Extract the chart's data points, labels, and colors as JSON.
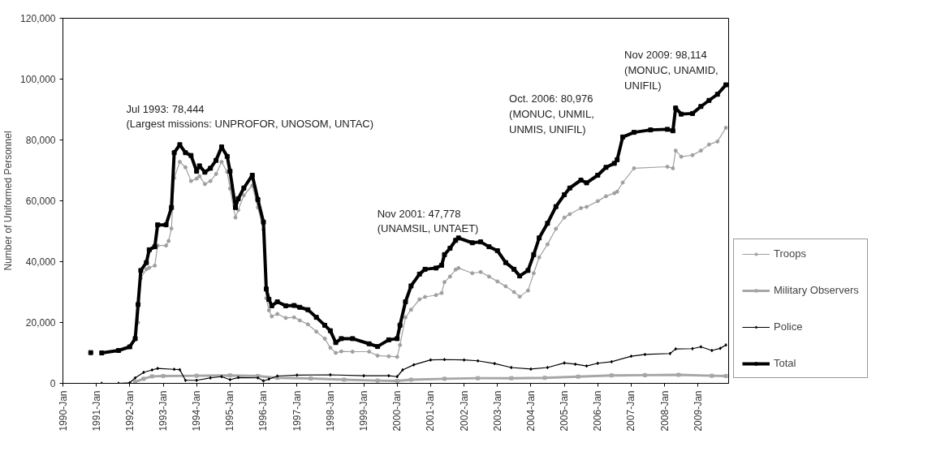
{
  "chart_data": {
    "type": "line",
    "ylabel": "Number of Uniformed Personnel",
    "xlim": [
      "1990-01",
      "2009-12"
    ],
    "xticks": [
      {
        "value": "1990-01",
        "label": "1990-Jan"
      },
      {
        "value": "1991-01",
        "label": "1991-Jan"
      },
      {
        "value": "1992-01",
        "label": "1992-Jan"
      },
      {
        "value": "1993-01",
        "label": "1993-Jan"
      },
      {
        "value": "1994-01",
        "label": "1994-Jan"
      },
      {
        "value": "1995-01",
        "label": "1995-Jan"
      },
      {
        "value": "1996-01",
        "label": "1996-Jan"
      },
      {
        "value": "1997-01",
        "label": "1997-Jan"
      },
      {
        "value": "1998-01",
        "label": "1998-Jan"
      },
      {
        "value": "1999-01",
        "label": "1999-Jan"
      },
      {
        "value": "2000-01",
        "label": "2000-Jan"
      },
      {
        "value": "2001-01",
        "label": "2001-Jan"
      },
      {
        "value": "2002-01",
        "label": "2002-Jan"
      },
      {
        "value": "2003-01",
        "label": "2003-Jan"
      },
      {
        "value": "2004-01",
        "label": "2004-Jan"
      },
      {
        "value": "2005-01",
        "label": "2005-Jan"
      },
      {
        "value": "2006-01",
        "label": "2006-Jan"
      },
      {
        "value": "2007-01",
        "label": "2007-Jan"
      },
      {
        "value": "2008-01",
        "label": "2008-Jan"
      },
      {
        "value": "2009-01",
        "label": "2009-Jan"
      }
    ],
    "ylim": [
      0,
      120000
    ],
    "yticks": [
      0,
      {
        "value": 20000,
        "label": "20,000"
      },
      {
        "value": 40000,
        "label": "40,000"
      },
      {
        "value": 60000,
        "label": "60,000"
      },
      {
        "value": 80000,
        "label": "80,000"
      },
      {
        "value": 100000,
        "label": "100,000"
      },
      {
        "value": 120000,
        "label": "120,000"
      }
    ],
    "grid": false,
    "legend": "right",
    "line_style": "solid",
    "series": [
      {
        "name": "Troops",
        "color": "#a0a0a0",
        "marker": "circle",
        "x": [
          "1992-04",
          "1992-05",
          "1992-07",
          "1992-08",
          "1992-10",
          "1992-11",
          "1993-02",
          "1993-03",
          "1993-04",
          "1993-05",
          "1993-07",
          "1993-09",
          "1993-11",
          "1994-01",
          "1994-02",
          "1994-04",
          "1994-06",
          "1994-08",
          "1994-10",
          "1994-12",
          "1995-01",
          "1995-03",
          "1995-04",
          "1995-06",
          "1995-09",
          "1995-11",
          "1996-01",
          "1996-02",
          "1996-03",
          "1996-04",
          "1996-06",
          "1996-09",
          "1996-12",
          "1997-02",
          "1997-05",
          "1997-08",
          "1997-11",
          "1998-01",
          "1998-03",
          "1998-05",
          "1998-09",
          "1999-03",
          "1999-06",
          "1999-10",
          "2000-01",
          "2000-02",
          "2000-04",
          "2000-06",
          "2000-09",
          "2000-11",
          "2001-03",
          "2001-05",
          "2001-06",
          "2001-08",
          "2001-10",
          "2001-11",
          "2002-04",
          "2002-07",
          "2002-10",
          "2003-01",
          "2003-04",
          "2003-07",
          "2003-09",
          "2003-12",
          "2004-02",
          "2004-04",
          "2004-07",
          "2004-10",
          "2005-01",
          "2005-03",
          "2005-07",
          "2005-09",
          "2006-01",
          "2006-04",
          "2006-07",
          "2006-08",
          "2006-10",
          "2007-02",
          "2008-02",
          "2008-04",
          "2008-05",
          "2008-07",
          "2008-11",
          "2009-02",
          "2009-05",
          "2009-08",
          "2009-11"
        ],
        "values": [
          20000,
          34600,
          37500,
          38000,
          38700,
          45300,
          45300,
          46800,
          50900,
          67500,
          72800,
          71000,
          66500,
          67300,
          68100,
          65500,
          66500,
          68800,
          72800,
          69500,
          64000,
          54500,
          57000,
          61800,
          65000,
          57800,
          50500,
          28000,
          24000,
          22000,
          22800,
          21500,
          21700,
          20700,
          19400,
          17000,
          14700,
          11700,
          10000,
          10500,
          10400,
          10400,
          9100,
          8900,
          8700,
          12600,
          21700,
          24200,
          27600,
          28400,
          29000,
          29700,
          33300,
          35100,
          37400,
          37900,
          36200,
          36600,
          35100,
          33500,
          31900,
          30000,
          28500,
          30500,
          36200,
          41400,
          45700,
          50800,
          54500,
          55600,
          57600,
          58000,
          59900,
          61500,
          62500,
          63000,
          66000,
          70700,
          71200,
          70700,
          76500,
          74500,
          75000,
          76500,
          78500,
          79500,
          84000
        ]
      },
      {
        "name": "Military Observers",
        "color": "#a6a6a6",
        "marker": "square",
        "x": [
          "1992-03",
          "1992-06",
          "1992-09",
          "1993-01",
          "1994-01",
          "1995-01",
          "1995-11",
          "1996-06",
          "1997-06",
          "1998-06",
          "1999-06",
          "2000-01",
          "2000-06",
          "2001-06",
          "2002-06",
          "2003-06",
          "2004-06",
          "2005-06",
          "2006-06",
          "2007-06",
          "2008-06",
          "2009-06",
          "2009-11"
        ],
        "values": [
          500,
          1500,
          2300,
          2400,
          2500,
          2600,
          2400,
          1800,
          1600,
          1200,
          900,
          800,
          1200,
          1500,
          1700,
          1700,
          1800,
          2200,
          2600,
          2700,
          2800,
          2500,
          2400
        ]
      },
      {
        "name": "Police",
        "color": "#000000",
        "marker": "diamond",
        "x": [
          "1991-03",
          "1991-09",
          "1992-01",
          "1992-03",
          "1992-06",
          "1992-09",
          "1992-11",
          "1993-05",
          "1993-07",
          "1993-09",
          "1994-01",
          "1994-06",
          "1994-10",
          "1995-01",
          "1995-04",
          "1995-11",
          "1996-01",
          "1996-03",
          "1996-06",
          "1997-01",
          "1998-01",
          "1999-01",
          "1999-10",
          "2000-01",
          "2000-03",
          "2000-07",
          "2001-01",
          "2001-06",
          "2002-01",
          "2002-06",
          "2002-12",
          "2003-06",
          "2004-01",
          "2004-07",
          "2005-01",
          "2005-05",
          "2005-09",
          "2006-01",
          "2006-06",
          "2007-01",
          "2007-06",
          "2008-03",
          "2008-05",
          "2008-11",
          "2009-02",
          "2009-06",
          "2009-09",
          "2009-11"
        ],
        "values": [
          0,
          0,
          200,
          1800,
          3600,
          4400,
          4900,
          4600,
          4500,
          1000,
          1000,
          1800,
          2200,
          1200,
          1900,
          1800,
          800,
          1400,
          2400,
          2700,
          2800,
          2500,
          2500,
          2200,
          4400,
          6100,
          7700,
          7800,
          7700,
          7400,
          6500,
          5200,
          4700,
          5200,
          6700,
          6300,
          5700,
          6600,
          7100,
          8900,
          9500,
          9800,
          11300,
          11400,
          12000,
          10800,
          11500,
          12600
        ]
      },
      {
        "name": "Total",
        "color": "#000000",
        "marker": "square",
        "x": [
          "1990-11",
          "1991-01",
          "1991-03",
          "1991-09",
          "1992-01",
          "1992-03",
          "1992-04",
          "1992-05",
          "1992-07",
          "1992-08",
          "1992-10",
          "1992-11",
          "1993-02",
          "1993-04",
          "1993-05",
          "1993-07",
          "1993-09",
          "1993-11",
          "1994-01",
          "1994-02",
          "1994-04",
          "1994-06",
          "1994-08",
          "1994-10",
          "1994-12",
          "1995-01",
          "1995-03",
          "1995-04",
          "1995-06",
          "1995-09",
          "1995-11",
          "1996-01",
          "1996-02",
          "1996-03",
          "1996-04",
          "1996-06",
          "1996-09",
          "1996-12",
          "1997-02",
          "1997-05",
          "1997-08",
          "1997-11",
          "1998-01",
          "1998-03",
          "1998-05",
          "1998-09",
          "1999-03",
          "1999-06",
          "1999-10",
          "2000-01",
          "2000-02",
          "2000-04",
          "2000-06",
          "2000-09",
          "2000-11",
          "2001-03",
          "2001-05",
          "2001-06",
          "2001-08",
          "2001-10",
          "2001-11",
          "2002-04",
          "2002-07",
          "2002-10",
          "2003-01",
          "2003-04",
          "2003-07",
          "2003-09",
          "2003-12",
          "2004-02",
          "2004-04",
          "2004-07",
          "2004-10",
          "2005-01",
          "2005-03",
          "2005-07",
          "2005-09",
          "2006-01",
          "2006-04",
          "2006-07",
          "2006-08",
          "2006-10",
          "2007-02",
          "2007-08",
          "2008-02",
          "2008-04",
          "2008-05",
          "2008-07",
          "2008-11",
          "2009-02",
          "2009-05",
          "2009-08",
          "2009-11"
        ],
        "values": [
          10100,
          null,
          10000,
          10800,
          12000,
          14700,
          25900,
          37100,
          39700,
          43900,
          44900,
          52100,
          52100,
          57800,
          75800,
          78444,
          75800,
          74900,
          69700,
          71500,
          69400,
          70700,
          73300,
          77700,
          74600,
          69700,
          57800,
          60700,
          64200,
          68400,
          60400,
          53000,
          31000,
          27600,
          25500,
          26800,
          25500,
          25600,
          25000,
          24200,
          21700,
          19100,
          17300,
          13400,
          14700,
          14700,
          13000,
          12100,
          14300,
          14700,
          19100,
          26800,
          32000,
          35900,
          37500,
          37900,
          38800,
          42300,
          44400,
          47000,
          47778,
          46200,
          46500,
          44900,
          43600,
          39700,
          37500,
          35300,
          37100,
          42300,
          47800,
          52600,
          58100,
          62000,
          64200,
          66800,
          65900,
          68400,
          71000,
          72300,
          73500,
          80976,
          82500,
          83300,
          83500,
          83000,
          90500,
          88500,
          88700,
          91000,
          93000,
          95000,
          98114
        ]
      }
    ],
    "annotations": [
      {
        "text": "Jul 1993: 78,444\n(Largest missions: UNPROFOR, UNOSOM, UNTAC)",
        "x": "1993-07",
        "y": 78444
      },
      {
        "text": "Nov 2001: 47,778\n(UNAMSIL, UNTAET)",
        "x": "2001-11",
        "y": 47778
      },
      {
        "text": "Oct. 2006: 80,976\n(MONUC, UNMIL,\nUNMIS, UNIFIL)",
        "x": "2006-10",
        "y": 80976
      },
      {
        "text": "Nov 2009: 98,114\n(MONUC, UNAMID,\nUNIFIL)",
        "x": "2009-11",
        "y": 98114
      }
    ]
  }
}
